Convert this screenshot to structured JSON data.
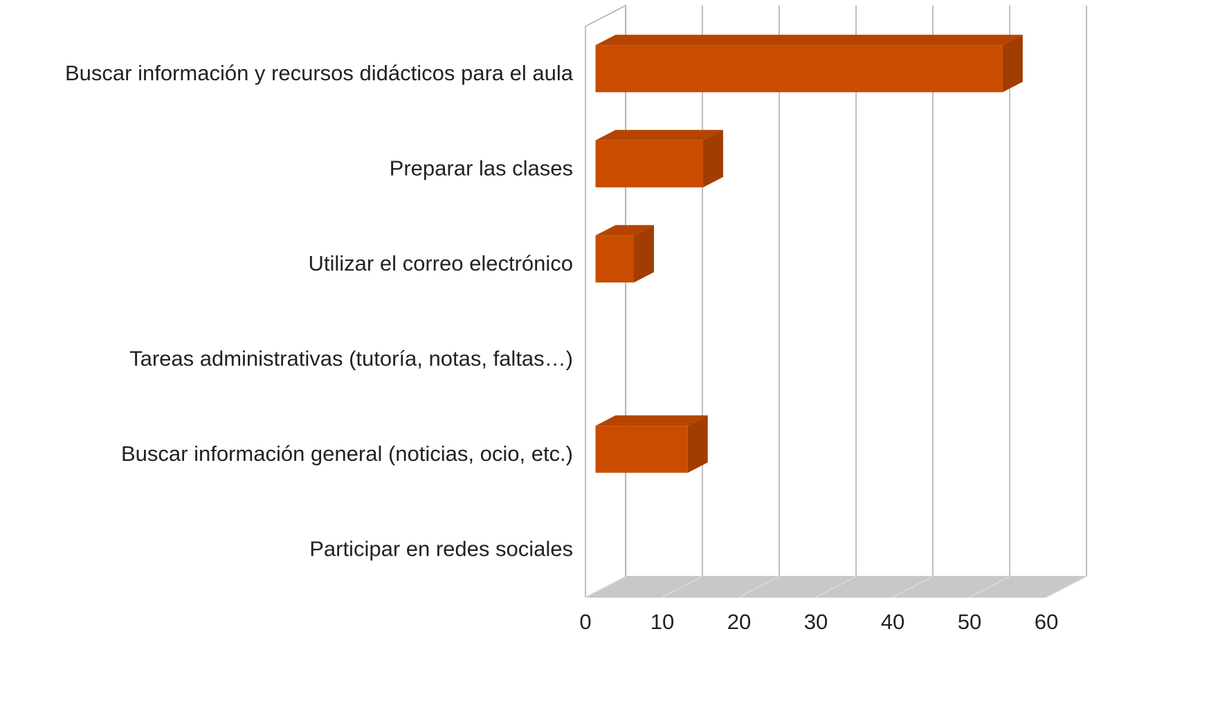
{
  "chart_data": {
    "type": "bar3d_horizontal",
    "categories": [
      "Buscar información y recursos didácticos para el aula",
      "Preparar las clases",
      "Utilizar el correo electrónico",
      "Tareas administrativas (tutoría, notas, faltas…)",
      "Buscar información general (noticias, ocio, etc.)",
      "Participar en redes sociales"
    ],
    "values": [
      53,
      14,
      5,
      0,
      12,
      0
    ],
    "color": "#c94c00",
    "xlim": [
      0,
      60
    ],
    "xticks": [
      0,
      10,
      20,
      30,
      40,
      50,
      60
    ],
    "grid": true
  }
}
